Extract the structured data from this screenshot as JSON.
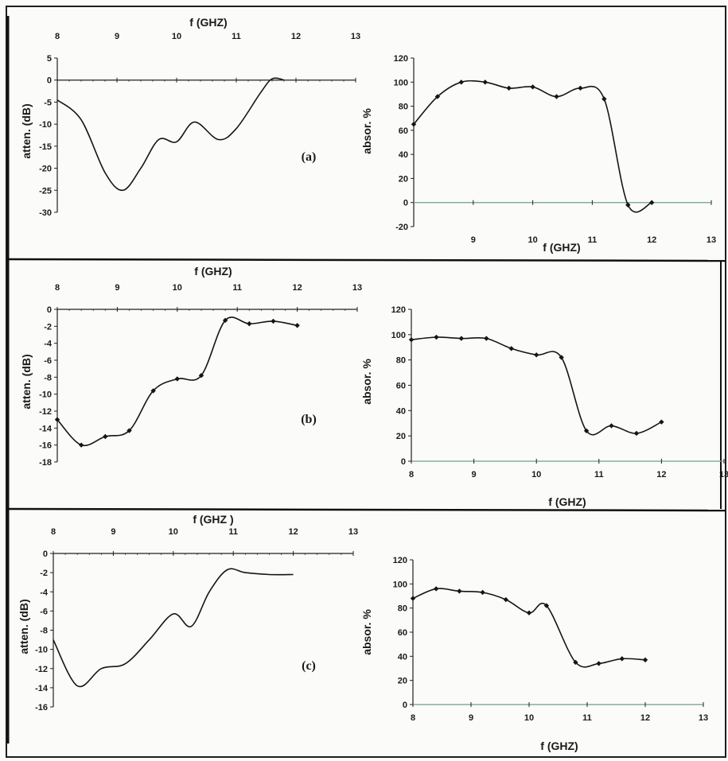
{
  "colors": {
    "curve": "#151515",
    "zero_line": "#6f9e8f",
    "frame": "#202020",
    "paper": "#fbfbfa"
  },
  "chart_data": [
    {
      "type": "line",
      "panel": "a-attenuation",
      "panel_label": "(a)",
      "xlabel": "f (GHZ)",
      "ylabel": "atten. (dB)",
      "x_ticks": [
        "8",
        "9",
        "10",
        "11",
        "12",
        "13"
      ],
      "y_ticks": [
        "5",
        "0",
        "-5",
        "-10",
        "-15",
        "-20",
        "-25",
        "-30"
      ],
      "xlim": [
        8,
        13
      ],
      "ylim": [
        -30,
        5
      ],
      "x_axis_position": "top",
      "series": [
        {
          "x": [
            8.0,
            8.4,
            8.8,
            9.1,
            9.4,
            9.7,
            10.0,
            10.3,
            10.7,
            11.0,
            11.4,
            11.6,
            11.8
          ],
          "y": [
            -4.5,
            -9,
            -21,
            -25,
            -20,
            -13.5,
            -14,
            -9.5,
            -13.5,
            -11,
            -3,
            0.3,
            0
          ],
          "markers": false
        }
      ]
    },
    {
      "type": "line",
      "panel": "a-absorption",
      "xlabel": "f (GHZ)",
      "ylabel": "absor. %",
      "x_ticks": [
        "9",
        "10",
        "11",
        "12",
        "13"
      ],
      "y_ticks": [
        "120",
        "100",
        "80",
        "60",
        "40",
        "20",
        "0",
        "-20"
      ],
      "xlim": [
        8,
        13
      ],
      "ylim": [
        -20,
        120
      ],
      "series": [
        {
          "x": [
            8.0,
            8.4,
            8.8,
            9.2,
            9.6,
            10.0,
            10.4,
            10.8,
            11.2,
            11.6,
            12.0
          ],
          "y": [
            65,
            88,
            100,
            100,
            95,
            96,
            88,
            95,
            86,
            -2,
            0
          ],
          "markers": true
        }
      ]
    },
    {
      "type": "line",
      "panel": "b-attenuation",
      "panel_label": "(b)",
      "xlabel": "f (GHZ)",
      "ylabel": "atten. (dB)",
      "x_ticks": [
        "8",
        "9",
        "10",
        "11",
        "12",
        "13"
      ],
      "y_ticks": [
        "0",
        "-2",
        "-4",
        "-6",
        "-8",
        "-10",
        "-12",
        "-14",
        "-16",
        "-18"
      ],
      "xlim": [
        8,
        13
      ],
      "ylim": [
        -18,
        0
      ],
      "x_axis_position": "top",
      "series": [
        {
          "x": [
            8.0,
            8.4,
            8.8,
            9.2,
            9.6,
            10.0,
            10.4,
            10.8,
            11.2,
            11.6,
            12.0
          ],
          "y": [
            -13,
            -16,
            -15,
            -14.3,
            -9.6,
            -8.2,
            -7.8,
            -1.3,
            -1.7,
            -1.4,
            -1.9
          ],
          "markers": true
        }
      ]
    },
    {
      "type": "line",
      "panel": "b-absorption",
      "xlabel": "f (GHZ)",
      "ylabel": "absor. %",
      "x_ticks": [
        "8",
        "9",
        "10",
        "11",
        "12",
        "13"
      ],
      "y_ticks": [
        "120",
        "100",
        "80",
        "60",
        "40",
        "20",
        "0"
      ],
      "xlim": [
        8,
        13
      ],
      "ylim": [
        0,
        120
      ],
      "series": [
        {
          "x": [
            8.0,
            8.4,
            8.8,
            9.2,
            9.6,
            10.0,
            10.4,
            10.8,
            11.2,
            11.6,
            12.0
          ],
          "y": [
            96,
            98,
            97,
            97,
            89,
            84,
            82,
            24,
            28,
            22,
            31
          ],
          "markers": true
        }
      ]
    },
    {
      "type": "line",
      "panel": "c-attenuation",
      "panel_label": "(c)",
      "xlabel": "f (GHZ )",
      "ylabel": "atten. (dB)",
      "x_ticks": [
        "8",
        "9",
        "10",
        "11",
        "12",
        "13"
      ],
      "y_ticks": [
        "0",
        "-2",
        "-4",
        "-6",
        "-8",
        "-10",
        "-12",
        "-14",
        "-16"
      ],
      "xlim": [
        8,
        13
      ],
      "ylim": [
        -16,
        0
      ],
      "x_axis_position": "top",
      "series": [
        {
          "x": [
            8.0,
            8.4,
            8.8,
            9.2,
            9.6,
            10.0,
            10.3,
            10.6,
            10.9,
            11.2,
            11.6,
            12.0
          ],
          "y": [
            -9,
            -13.8,
            -12,
            -11.5,
            -9,
            -6.3,
            -7.6,
            -4,
            -1.7,
            -2,
            -2.2,
            -2.2
          ],
          "markers": false
        }
      ]
    },
    {
      "type": "line",
      "panel": "c-absorption",
      "xlabel": "f (GHZ)",
      "ylabel": "absor. %",
      "x_ticks": [
        "8",
        "9",
        "10",
        "11",
        "12",
        "13"
      ],
      "y_ticks": [
        "120",
        "100",
        "80",
        "60",
        "40",
        "20",
        "0"
      ],
      "xlim": [
        8,
        13
      ],
      "ylim": [
        0,
        120
      ],
      "series": [
        {
          "x": [
            8.0,
            8.4,
            8.8,
            9.2,
            9.6,
            10.0,
            10.3,
            10.8,
            11.2,
            11.6,
            12.0
          ],
          "y": [
            88,
            96,
            94,
            93,
            87,
            76,
            82,
            35,
            34,
            38,
            37
          ],
          "markers": true
        }
      ]
    }
  ]
}
